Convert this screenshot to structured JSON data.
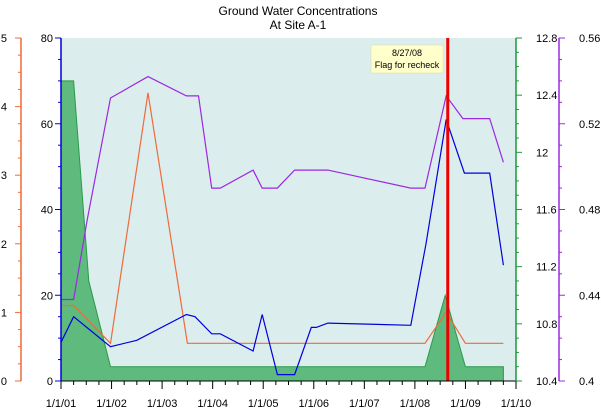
{
  "chart_data": {
    "type": "line",
    "title": "Ground Water Concentrations",
    "subtitle": "At Site A-1",
    "xlabel": "",
    "x_ticks": [
      "1/1/01",
      "1/1/02",
      "1/1/03",
      "1/1/04",
      "1/1/05",
      "1/1/06",
      "1/1/07",
      "1/1/08",
      "1/1/09",
      "1/1/10"
    ],
    "xlim": [
      2001.0,
      2010.0
    ],
    "grid": false,
    "legend": "none",
    "background": "#dcedee",
    "axes": [
      {
        "id": "a",
        "side": "left-outer",
        "range": [
          0,
          5
        ],
        "ticks": [
          0,
          1,
          2,
          3,
          4,
          5
        ],
        "color": "#f06a3a"
      },
      {
        "id": "b",
        "side": "left-inner",
        "range": [
          0,
          80
        ],
        "ticks": [
          0,
          20,
          40,
          60,
          80
        ],
        "color": "#0000dd"
      },
      {
        "id": "c",
        "side": "right-inner",
        "range": [
          10.4,
          12.8
        ],
        "ticks": [
          10.4,
          10.8,
          11.2,
          11.6,
          12,
          12.4,
          12.8
        ],
        "tick_labels": [
          "10.4",
          "10.8",
          "11.2",
          "11.6",
          "12",
          "12.4",
          "12.8"
        ],
        "color": "#1a9a3a"
      },
      {
        "id": "d",
        "side": "right-outer",
        "range": [
          0.4,
          0.56
        ],
        "ticks": [
          0.4,
          0.44,
          0.48,
          0.52,
          0.56
        ],
        "color": "#9a2ae0"
      }
    ],
    "series": [
      {
        "axis": "c",
        "kind": "area",
        "color": "#2a9a4a",
        "fill": "#5fba7d",
        "points": [
          [
            2001.0,
            12.5
          ],
          [
            2001.25,
            12.5
          ],
          [
            2001.55,
            11.1
          ],
          [
            2001.98,
            10.5
          ],
          [
            2008.2,
            10.5
          ],
          [
            2008.6,
            11.0
          ],
          [
            2009.0,
            10.5
          ],
          [
            2009.75,
            10.5
          ]
        ]
      },
      {
        "axis": "a",
        "kind": "line",
        "color": "#f06a3a",
        "points": [
          [
            2001.0,
            1.1
          ],
          [
            2001.25,
            1.1
          ],
          [
            2001.98,
            0.55
          ],
          [
            2002.72,
            4.2
          ],
          [
            2003.5,
            0.55
          ],
          [
            2008.2,
            0.55
          ],
          [
            2008.62,
            1.0
          ],
          [
            2009.0,
            0.55
          ],
          [
            2009.75,
            0.55
          ]
        ]
      },
      {
        "axis": "b",
        "kind": "line",
        "color": "#0000dd",
        "points": [
          [
            2001.0,
            9
          ],
          [
            2001.25,
            15
          ],
          [
            2001.98,
            8
          ],
          [
            2002.5,
            9.5
          ],
          [
            2003.48,
            15.5
          ],
          [
            2003.65,
            15
          ],
          [
            2003.98,
            11
          ],
          [
            2004.15,
            11
          ],
          [
            2004.8,
            7
          ],
          [
            2004.98,
            15.5
          ],
          [
            2005.28,
            1.5
          ],
          [
            2005.62,
            1.5
          ],
          [
            2005.95,
            12.5
          ],
          [
            2006.05,
            12.5
          ],
          [
            2006.28,
            13.5
          ],
          [
            2007.92,
            13
          ],
          [
            2008.22,
            32
          ],
          [
            2008.62,
            61
          ],
          [
            2008.98,
            48.5
          ],
          [
            2009.48,
            48.5
          ],
          [
            2009.75,
            27
          ]
        ]
      },
      {
        "axis": "d",
        "kind": "line",
        "color": "#9a2ae0",
        "points": [
          [
            2001.0,
            0.438
          ],
          [
            2001.25,
            0.438
          ],
          [
            2001.52,
            0.4754
          ],
          [
            2001.98,
            0.532
          ],
          [
            2002.72,
            0.542
          ],
          [
            2003.48,
            0.533
          ],
          [
            2003.72,
            0.533
          ],
          [
            2003.98,
            0.49
          ],
          [
            2004.15,
            0.49
          ],
          [
            2004.8,
            0.4984
          ],
          [
            2004.98,
            0.49
          ],
          [
            2005.28,
            0.49
          ],
          [
            2005.62,
            0.4984
          ],
          [
            2006.28,
            0.4984
          ],
          [
            2007.92,
            0.49
          ],
          [
            2008.2,
            0.49
          ],
          [
            2008.62,
            0.533
          ],
          [
            2008.95,
            0.5224
          ],
          [
            2009.48,
            0.5224
          ],
          [
            2009.75,
            0.502
          ]
        ]
      }
    ],
    "marker": {
      "x": 2008.65,
      "color": "#ee0000",
      "date_label": "8/27/08",
      "note": "Flag for recheck"
    }
  }
}
